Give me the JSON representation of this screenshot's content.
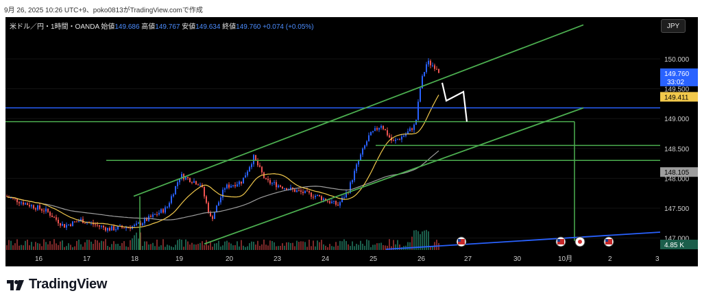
{
  "header": {
    "caption": "9月 26, 2025 10:26 UTC+9、poko0813がTradingView.comで作成"
  },
  "symbol": {
    "name": "米ドル／円・1時間・OANDA",
    "open_label": "始値",
    "open": "149.686",
    "high_label": "高値",
    "high": "149.767",
    "low_label": "安値",
    "low": "149.634",
    "close_label": "終値",
    "close": "149.760",
    "change": "+0.074 (+0.05%)"
  },
  "currency_button": "JPY",
  "price_labels": {
    "current": "149.760",
    "countdown": "33:02",
    "ma_fast": "149.411",
    "ma_slow": "148.105",
    "volume": "4.85 K"
  },
  "logo": {
    "text": "TradingView"
  },
  "colors": {
    "up": "#2962ff",
    "down": "#ef5350",
    "channel": "#4caf50",
    "hline_blue": "#2962ff",
    "ma_fast": "#f2c94c",
    "ma_slow": "#9e9e9e",
    "vol_up": "#1b5e4b",
    "vol_down": "#7f2a2a"
  },
  "chart_data": {
    "type": "candlestick",
    "symbol": "USDJPY",
    "timeframe": "1時間",
    "y_axis": {
      "ticks": [
        147.0,
        147.5,
        148.0,
        148.5,
        149.0,
        149.5,
        150.0
      ],
      "ylim": [
        146.8,
        150.7
      ]
    },
    "x_axis": {
      "ticks": [
        "16",
        "17",
        "18",
        "19",
        "20",
        "23",
        "24",
        "25",
        "26",
        "27",
        "30",
        "10月",
        "2",
        "3"
      ]
    },
    "horizontal_lines": [
      149.18,
      148.95,
      148.55,
      148.3
    ],
    "trend_channels": [
      {
        "name": "upper_channel",
        "from": {
          "x": "18",
          "y": 147.7
        },
        "to": {
          "x": "28",
          "y": 150.57
        }
      },
      {
        "name": "lower_channel",
        "from": {
          "x": "19.5",
          "y": 146.9
        },
        "to": {
          "x": "28",
          "y": 149.18
        }
      }
    ],
    "projection_path": [
      {
        "x": "26.4",
        "y": 149.6
      },
      {
        "x": "26.5",
        "y": 149.3
      },
      {
        "x": "26.8",
        "y": 149.45
      },
      {
        "x": "27",
        "y": 148.95
      }
    ],
    "series_summary": {
      "start_close": 147.7,
      "low": 147.15,
      "swing_high_22": 148.35,
      "range_low_24": 147.55,
      "peak_26": 149.95,
      "last_close": 149.76
    },
    "grid": false,
    "legend": "none"
  }
}
